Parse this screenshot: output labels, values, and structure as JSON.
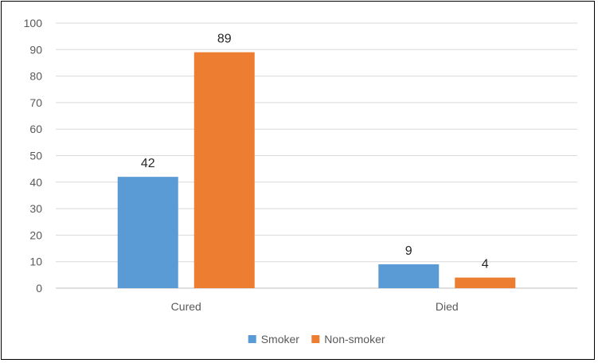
{
  "chart_data": {
    "type": "bar",
    "categories": [
      "Cured",
      "Died"
    ],
    "series": [
      {
        "name": "Smoker",
        "values": [
          42,
          9
        ],
        "color": "#5B9BD5"
      },
      {
        "name": "Non-smoker",
        "values": [
          89,
          4
        ],
        "color": "#ED7D31"
      }
    ],
    "title": "",
    "xlabel": "",
    "ylabel": "",
    "ylim": [
      0,
      100
    ],
    "yticks": [
      0,
      10,
      20,
      30,
      40,
      50,
      60,
      70,
      80,
      90,
      100
    ],
    "grid": true,
    "gridColor": "#D9D9D9",
    "legend": "bottom",
    "data_labels": true
  }
}
